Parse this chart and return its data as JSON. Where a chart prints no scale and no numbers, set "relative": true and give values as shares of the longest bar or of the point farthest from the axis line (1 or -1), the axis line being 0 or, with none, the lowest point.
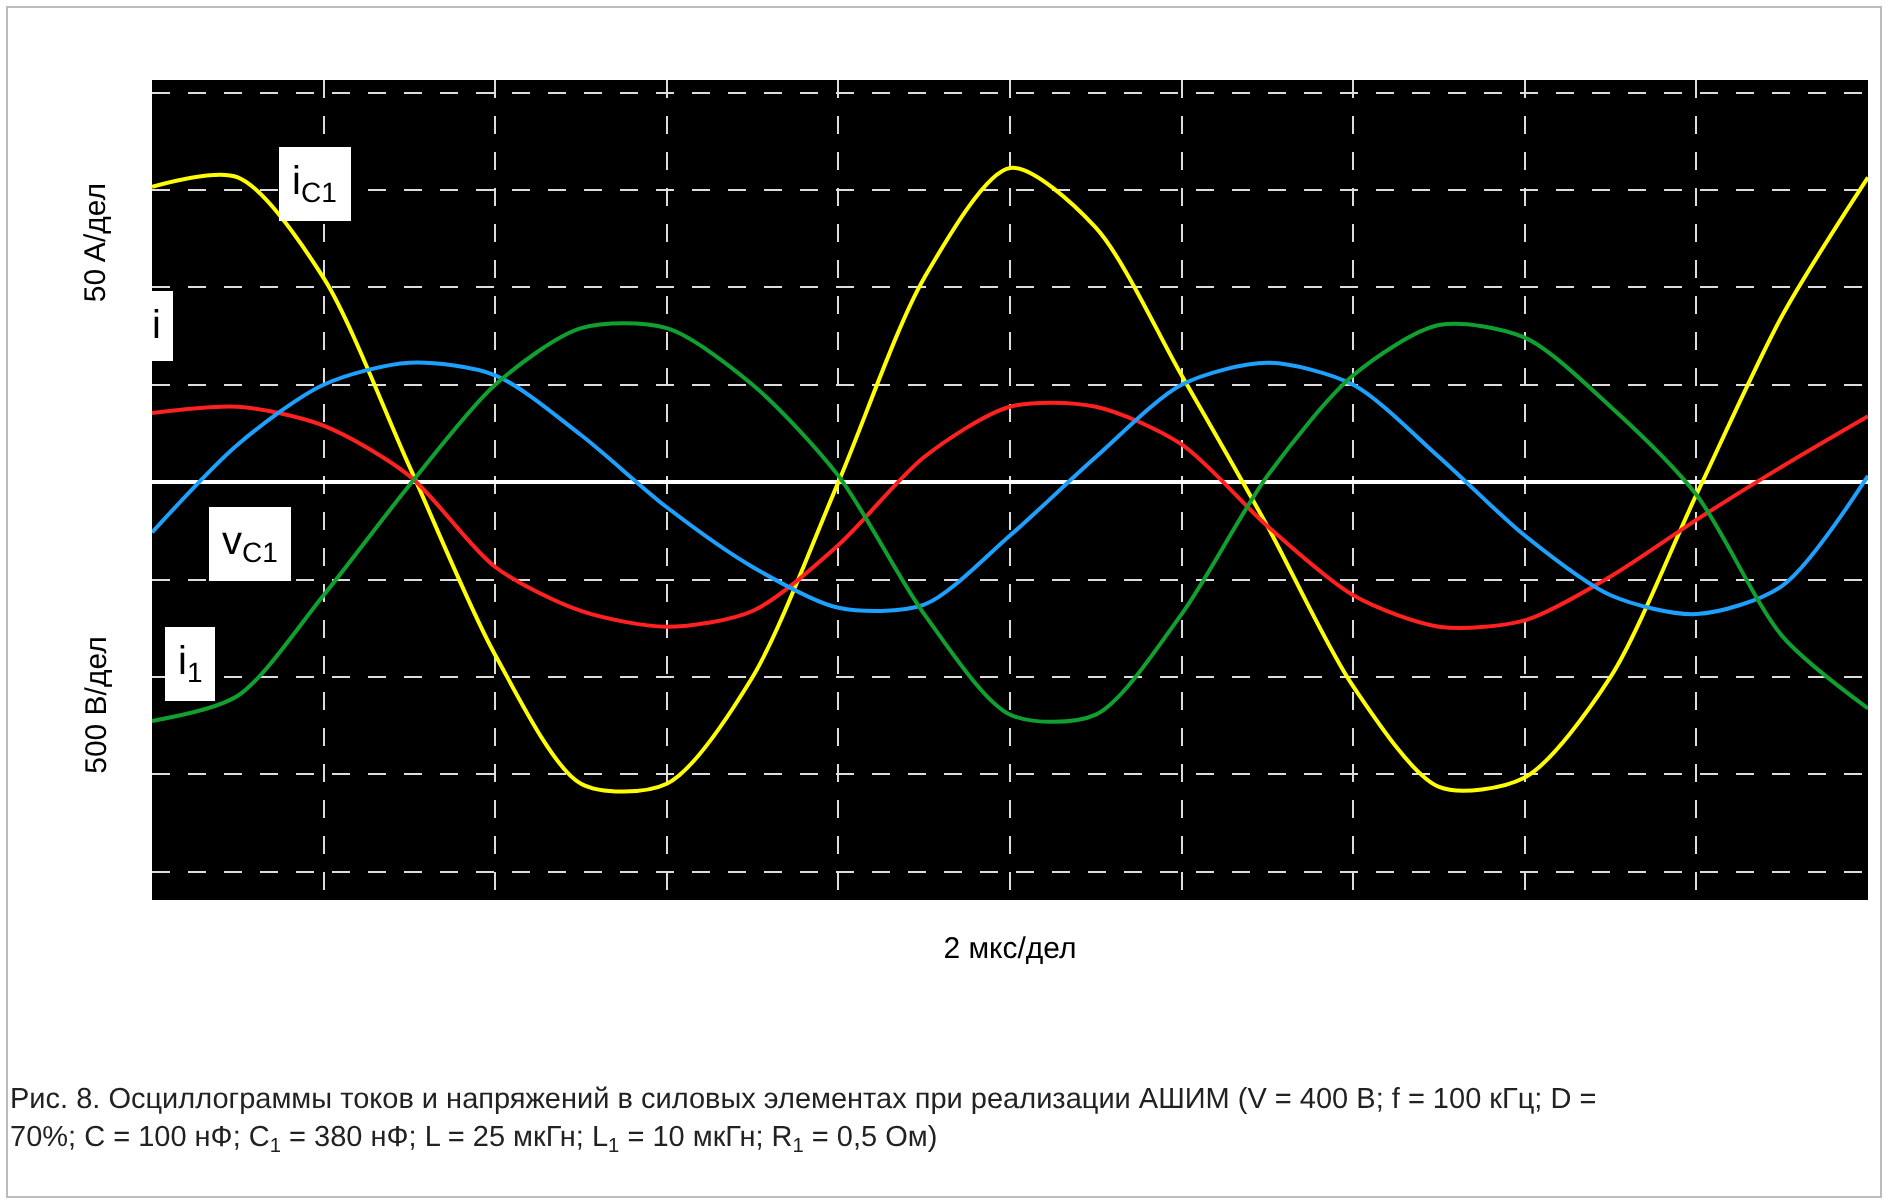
{
  "chart_data": {
    "type": "line",
    "relative": true,
    "grid": true,
    "legend": false,
    "marker": "none",
    "line_style": "solid",
    "xlabel": "2 мкс/дел",
    "ylabel": "50 A/дел",
    "annotations": [
      "500 B/дел",
      "Рис. 8. Осциллограммы токов и напряжений в силовых элементах при реализации АШИМ (V = 400 В; f = 100 кГц; D = 70%; C = 100 нФ; C$_{1}$ = 380 нФ; L = 25 мкГн; L$_{1}$ = 10 мкГн; R$_{1}$ = 0,5 Ом)"
    ],
    "categories": [
      null,
      null,
      null,
      null,
      null,
      null,
      null,
      null,
      null,
      null,
      null,
      null,
      null,
      null,
      null,
      null,
      null,
      null,
      null,
      null,
      null
    ],
    "series": [
      {
        "name": "i$_{C1}$",
        "color": "#ffff00",
        "values": [
          0.94,
          0.97,
          0.65,
          0.05,
          -0.55,
          -0.96,
          -0.96,
          -0.62,
          0,
          0.65,
          1,
          0.81,
          0.34,
          -0.14,
          -0.65,
          -0.97,
          -0.94,
          -0.62,
          -0.04,
          0.53,
          0.97
        ]
      },
      {
        "name": "i",
        "color": "#ff2020",
        "values": [
          0.22,
          0.24,
          0.18,
          0.02,
          -0.27,
          -0.41,
          -0.46,
          -0.41,
          -0.2,
          0.08,
          0.24,
          0.24,
          0.12,
          -0.14,
          -0.36,
          -0.46,
          -0.44,
          -0.3,
          -0.12,
          0.05,
          0.21
        ]
      },
      {
        "name": "v$_{C1}$",
        "color": "#1ea0ff",
        "values": [
          -0.16,
          0.12,
          0.31,
          0.38,
          0.34,
          0.15,
          -0.08,
          -0.27,
          -0.4,
          -0.39,
          -0.17,
          0.08,
          0.31,
          0.38,
          0.31,
          0.08,
          -0.17,
          -0.36,
          -0.42,
          -0.33,
          0.02
        ]
      },
      {
        "name": "i$_{1}$",
        "color": "#10a030",
        "values": [
          -0.76,
          -0.68,
          -0.36,
          -0.01,
          0.31,
          0.49,
          0.49,
          0.31,
          0.02,
          -0.42,
          -0.74,
          -0.74,
          -0.42,
          0.02,
          0.34,
          0.5,
          0.46,
          0.24,
          -0.04,
          -0.49,
          -0.72
        ]
      }
    ]
  }
}
